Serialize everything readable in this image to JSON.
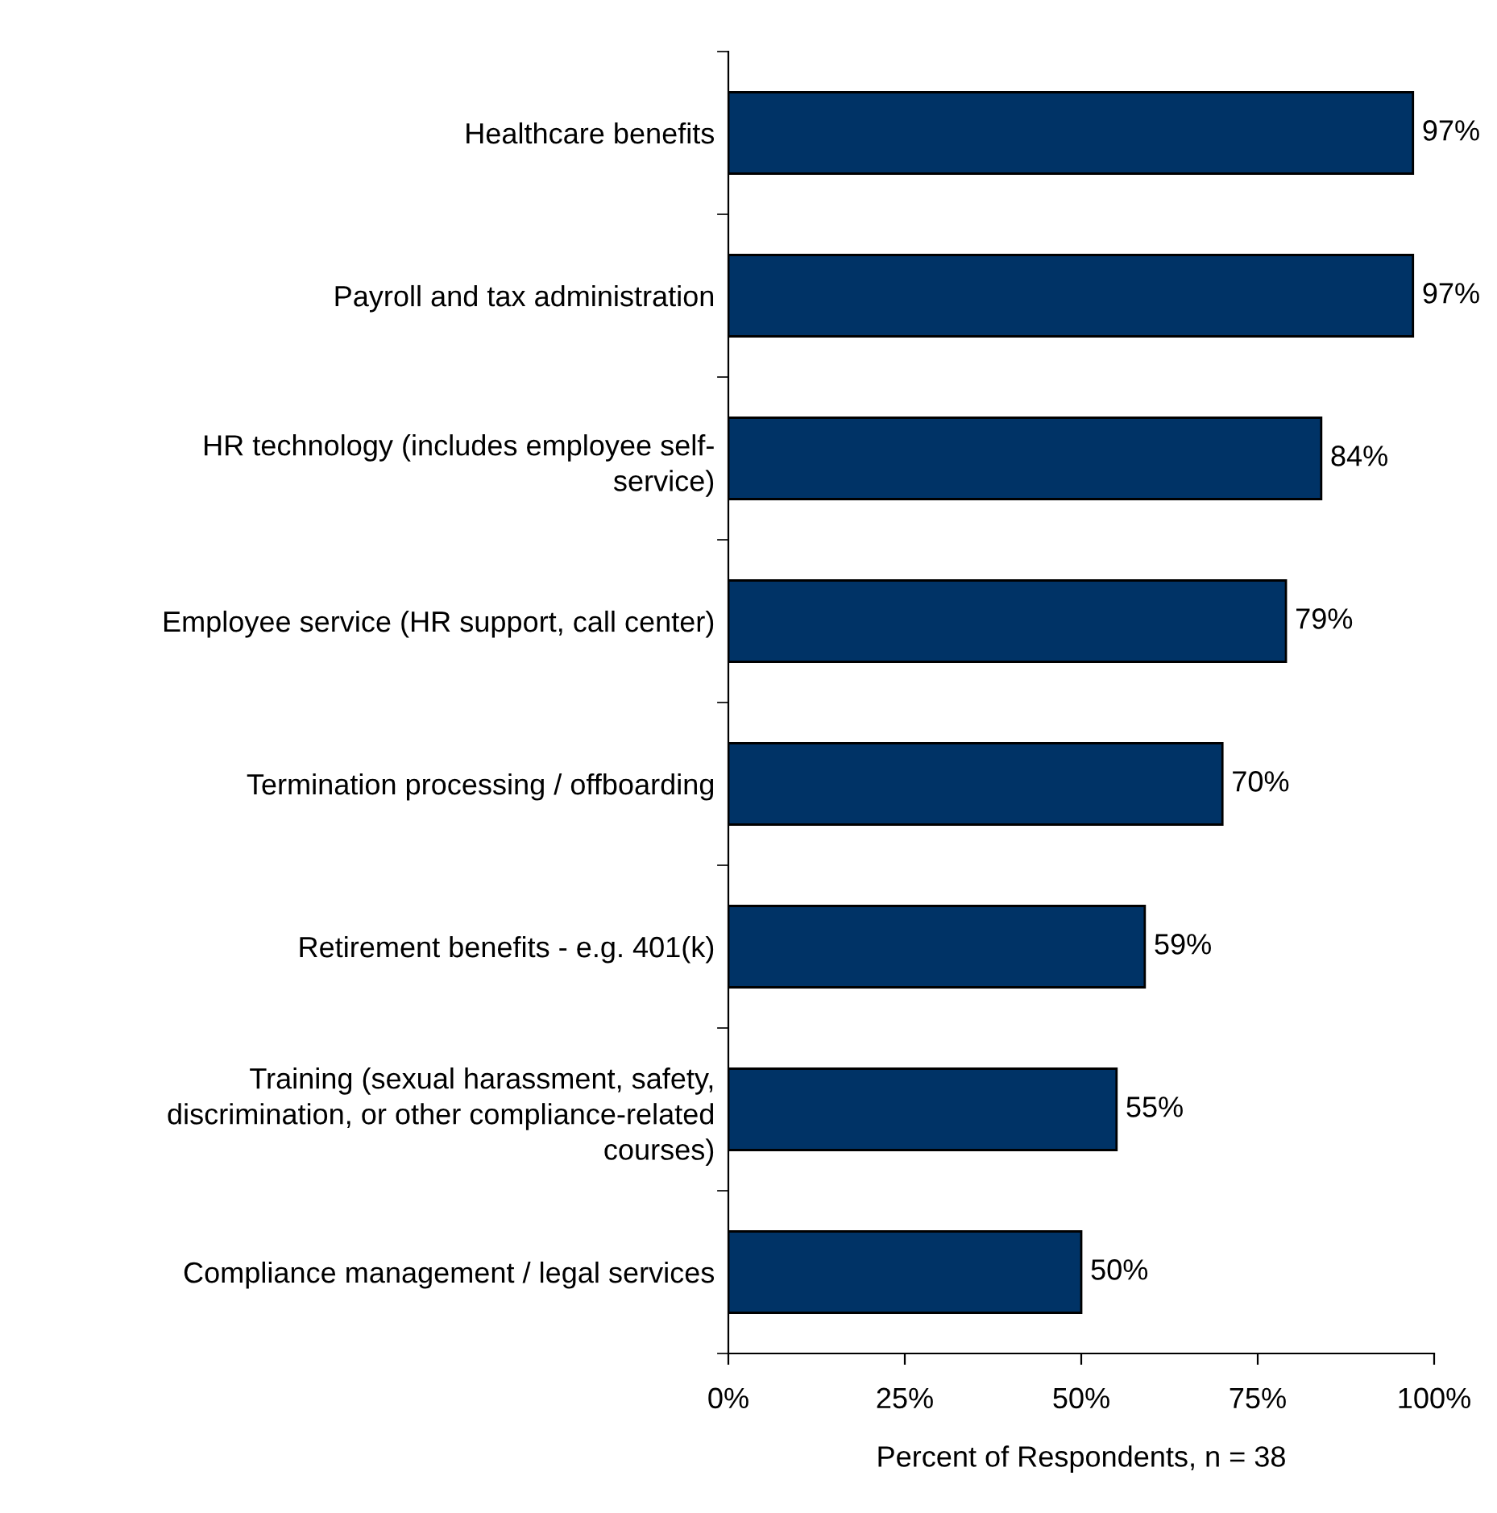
{
  "chart_data": {
    "type": "bar",
    "orientation": "horizontal",
    "xlabel": "Percent of Respondents, n = 38",
    "categories": [
      "Healthcare benefits",
      "Payroll and tax administration",
      "HR technology (includes employee self-\nservice)",
      "Employee service (HR support, call center)",
      "Termination processing / offboarding",
      "Retirement benefits - e.g. 401(k)",
      "Training (sexual harassment, safety,\ndiscrimination, or other compliance-related\ncourses)",
      "Compliance management / legal services"
    ],
    "values": [
      97,
      97,
      84,
      79,
      70,
      59,
      55,
      50
    ],
    "value_labels": [
      "97%",
      "97%",
      "84%",
      "79%",
      "70%",
      "59%",
      "55%",
      "50%"
    ],
    "color": "#003366",
    "xlim": [
      0,
      100
    ],
    "xticks": [
      {
        "value": 0,
        "label": "0%"
      },
      {
        "value": 25,
        "label": "25%"
      },
      {
        "value": 50,
        "label": "50%"
      },
      {
        "value": 75,
        "label": "75%"
      },
      {
        "value": 100,
        "label": "100%"
      }
    ],
    "grid": false,
    "legend": false
  }
}
